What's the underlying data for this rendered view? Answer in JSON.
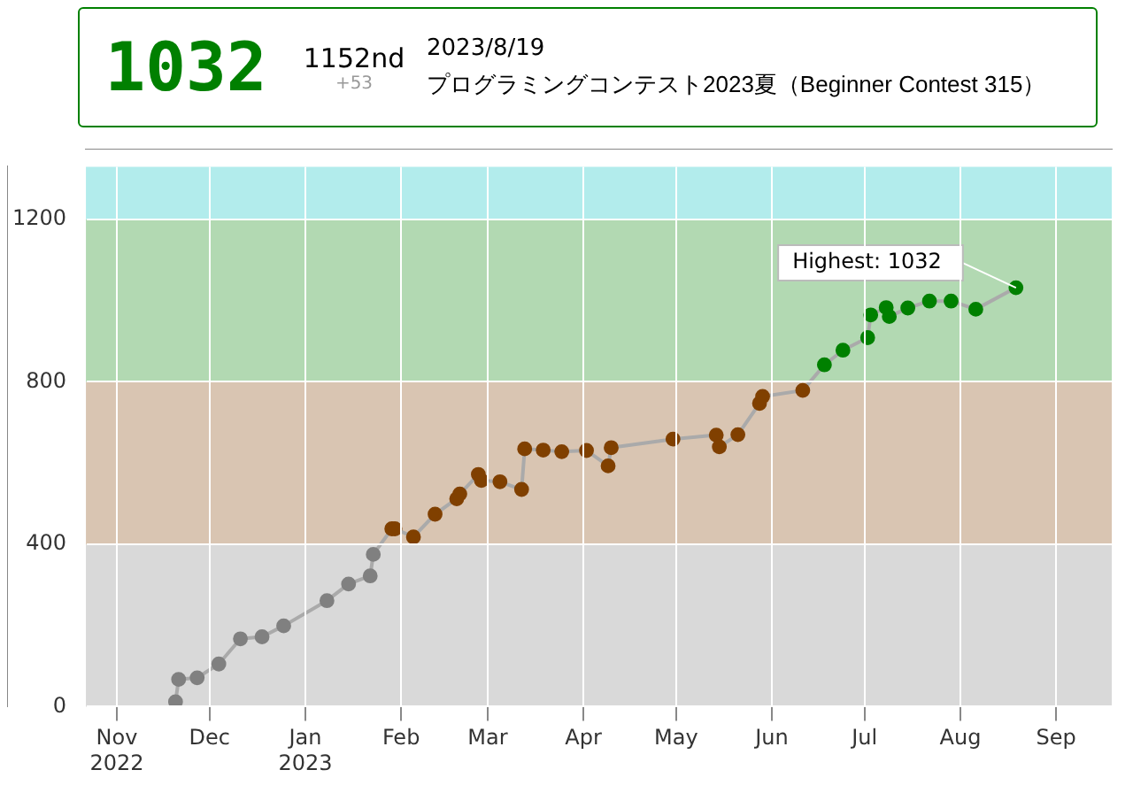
{
  "chart_data": {
    "type": "line",
    "annotations": [
      "1032",
      "1152nd",
      "+53",
      "2023/8/19",
      "プログラミングコンテスト2023夏（Beginner Contest 315）",
      {
        "text": "Highest: 1032",
        "x": "2023-08-19",
        "y": 1032
      }
    ],
    "x": [
      "2022-11-20",
      "2022-11-21",
      "2022-11-27",
      "2022-12-04",
      "2022-12-11",
      "2022-12-18",
      "2022-12-25",
      "2023-01-08",
      "2023-01-15",
      "2023-01-22",
      "2023-01-23",
      "2023-01-29",
      "2023-01-30",
      "2023-02-05",
      "2023-02-12",
      "2023-02-19",
      "2023-02-20",
      "2023-02-26",
      "2023-02-27",
      "2023-03-05",
      "2023-03-12",
      "2023-03-13",
      "2023-03-19",
      "2023-03-25",
      "2023-04-02",
      "2023-04-09",
      "2023-04-10",
      "2023-04-30",
      "2023-05-14",
      "2023-05-15",
      "2023-05-21",
      "2023-05-28",
      "2023-05-29",
      "2023-06-11",
      "2023-06-18",
      "2023-06-24",
      "2023-07-02",
      "2023-07-03",
      "2023-07-08",
      "2023-07-09",
      "2023-07-15",
      "2023-07-22",
      "2023-07-29",
      "2023-08-06",
      "2023-08-19"
    ],
    "series": [
      {
        "color": "#aaaaaa",
        "values": [
          12,
          67,
          71,
          105,
          167,
          172,
          199,
          261,
          302,
          322,
          375,
          438,
          438,
          418,
          474,
          512,
          524,
          572,
          557,
          554,
          535,
          635,
          632,
          628,
          631,
          593,
          638,
          659,
          669,
          640,
          670,
          747,
          764,
          779,
          842,
          878,
          909,
          965,
          983,
          961,
          982,
          999,
          999,
          979,
          1032
        ],
        "colors": [
          "#808080",
          "#808080",
          "#808080",
          "#808080",
          "#808080",
          "#808080",
          "#808080",
          "#808080",
          "#808080",
          "#808080",
          "#808080",
          "#804000",
          "#804000",
          "#804000",
          "#804000",
          "#804000",
          "#804000",
          "#804000",
          "#804000",
          "#804000",
          "#804000",
          "#804000",
          "#804000",
          "#804000",
          "#804000",
          "#804000",
          "#804000",
          "#804000",
          "#804000",
          "#804000",
          "#804000",
          "#804000",
          "#804000",
          "#804000",
          "#008000",
          "#008000",
          "#008000",
          "#008000",
          "#008000",
          "#008000",
          "#008000",
          "#008000",
          "#008000",
          "#008000",
          "#008000"
        ]
      }
    ],
    "marker": "circle",
    "xlim": [
      "2022-10-22",
      "2023-09-19"
    ],
    "xticks": [
      {
        "value": "2022-11-01",
        "label": "Nov 2022"
      },
      {
        "value": "2022-12-01",
        "label": "Dec"
      },
      {
        "value": "2023-01-01",
        "label": "Jan 2023"
      },
      {
        "value": "2023-02-01",
        "label": "Feb"
      },
      {
        "value": "2023-03-01",
        "label": "Mar"
      },
      {
        "value": "2023-04-01",
        "label": "Apr"
      },
      {
        "value": "2023-05-01",
        "label": "May"
      },
      {
        "value": "2023-06-01",
        "label": "Jun"
      },
      {
        "value": "2023-07-01",
        "label": "Jul"
      },
      {
        "value": "2023-08-01",
        "label": "Aug"
      },
      {
        "value": "2023-09-01",
        "label": "Sep"
      }
    ],
    "ylim": [
      0,
      1330
    ],
    "yticks": [
      0,
      400,
      800,
      1200
    ],
    "bands": [
      {
        "axis": "y",
        "from": 0,
        "to": 400,
        "color": "#d9d9d9"
      },
      {
        "axis": "y",
        "from": 400,
        "to": 800,
        "color": "#d9c5b2"
      },
      {
        "axis": "y",
        "from": 800,
        "to": 1200,
        "color": "#b2d9b2"
      },
      {
        "axis": "y",
        "from": 1200,
        "to": 1330,
        "color": "#b2ecec"
      }
    ],
    "grid": true,
    "legend": false
  }
}
